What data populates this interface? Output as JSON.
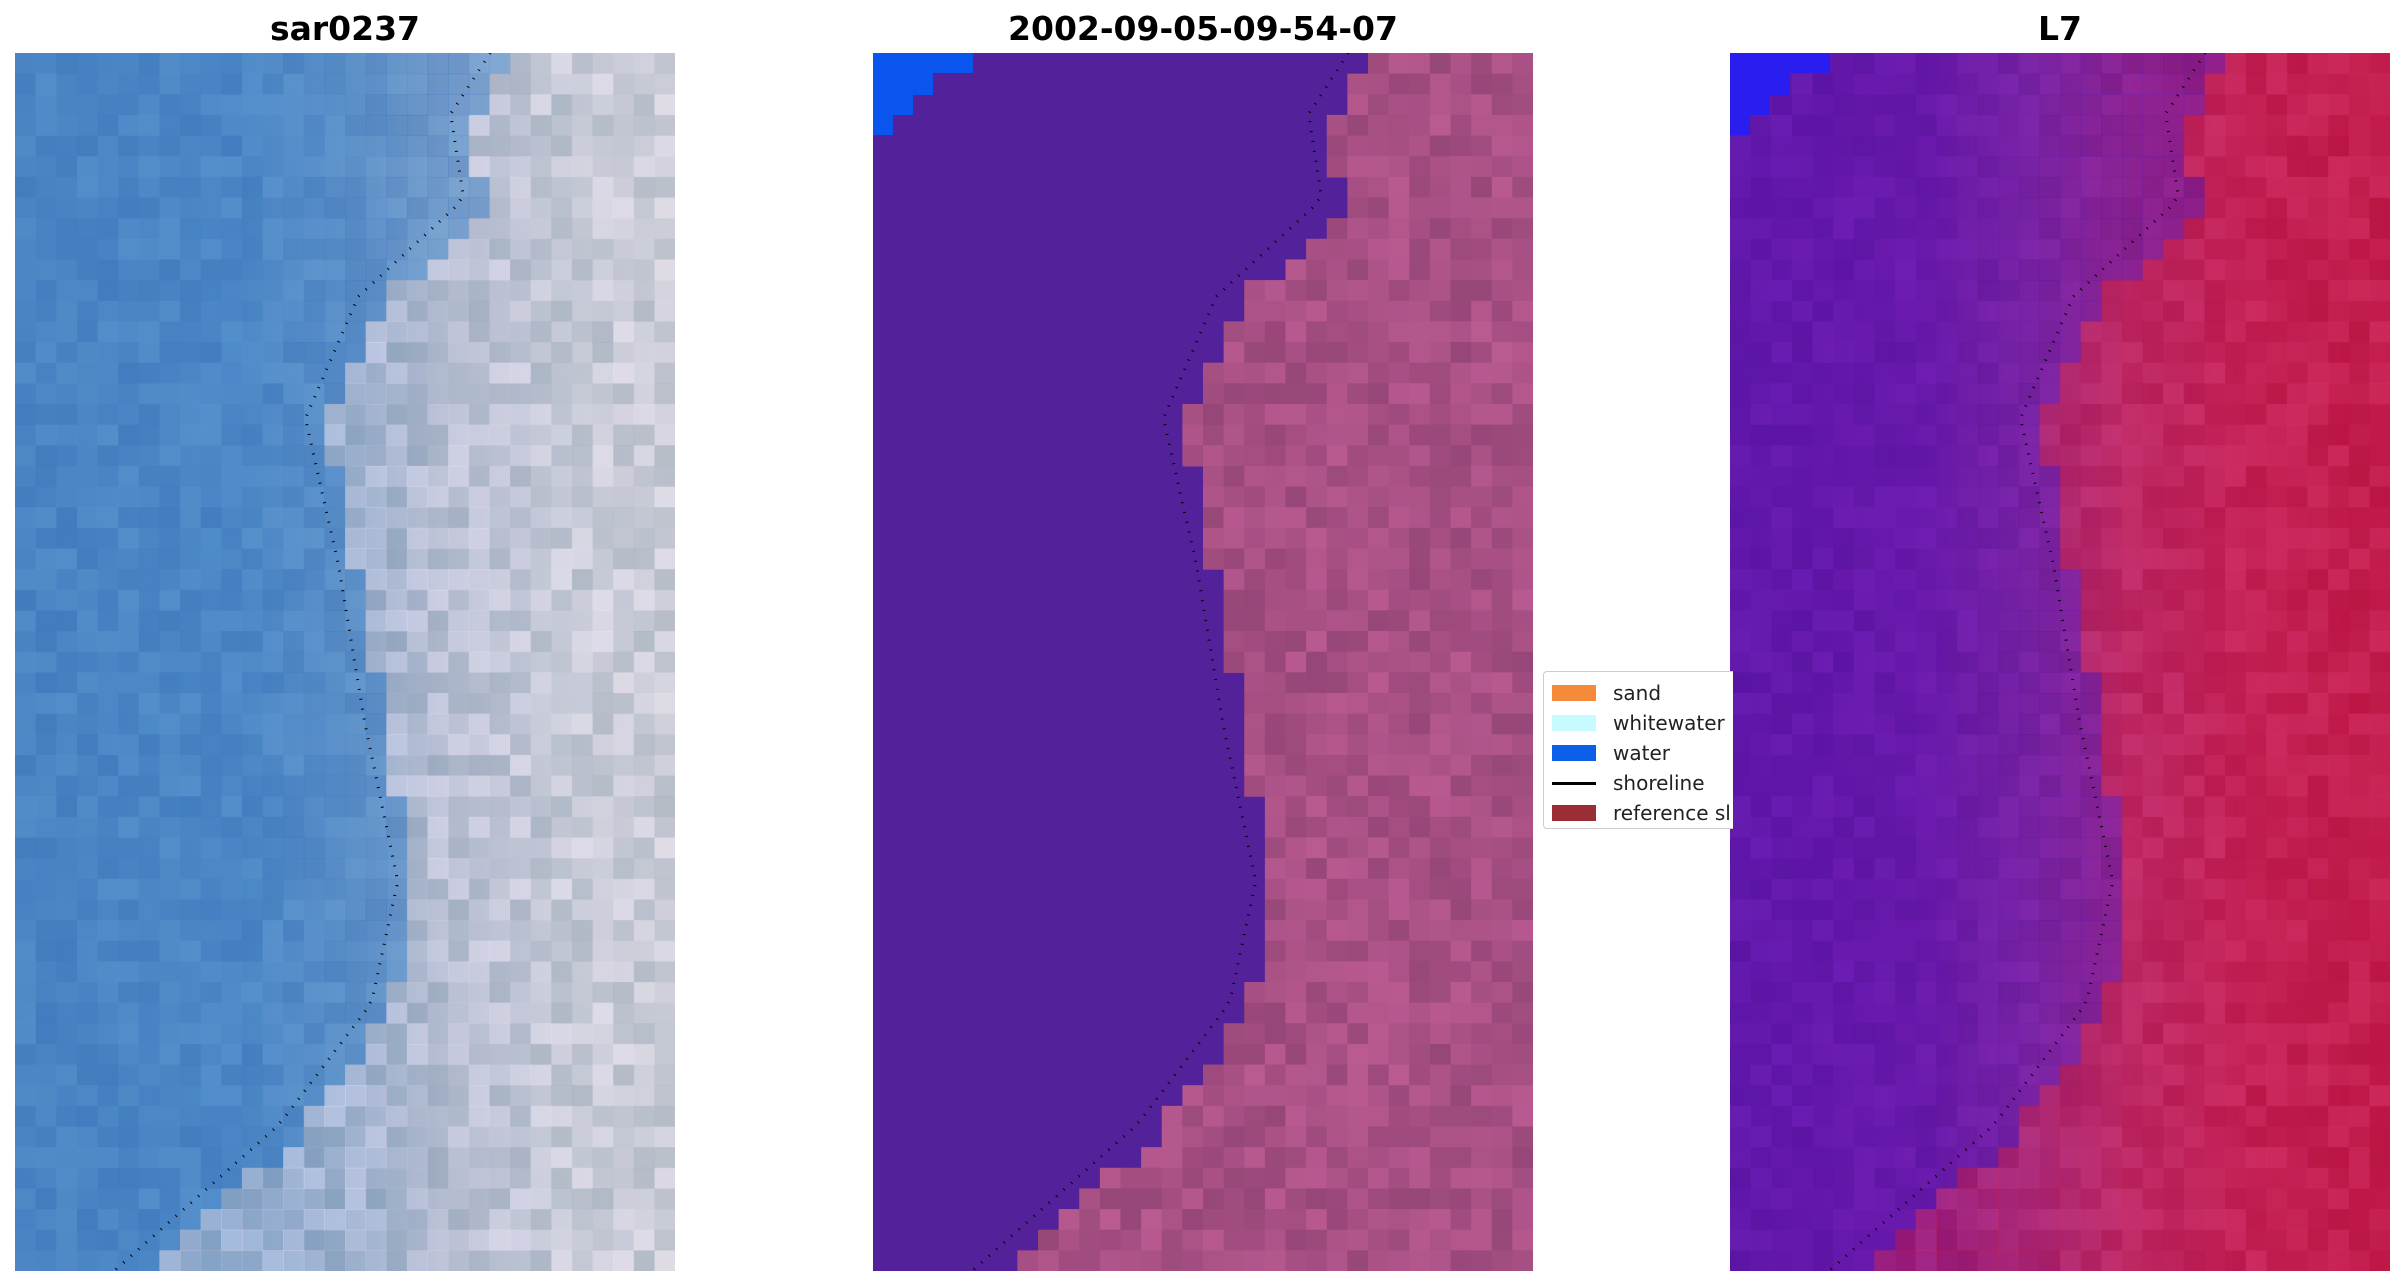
{
  "panels": [
    {
      "title": "sar0237"
    },
    {
      "title": "2002-09-05-09-54-07"
    },
    {
      "title": "L7"
    }
  ],
  "legend": {
    "items": [
      {
        "label": "sand",
        "color": "#f58a3a",
        "kind": "patch"
      },
      {
        "label": "whitewater",
        "color": "#c8fbff",
        "kind": "patch"
      },
      {
        "label": "water",
        "color": "#0b5ee8",
        "kind": "patch"
      },
      {
        "label": "shoreline",
        "color": "#000000",
        "kind": "line"
      },
      {
        "label": "reference sl",
        "color": "#9a2e33",
        "kind": "patch"
      }
    ]
  },
  "colors": {
    "rgb_water": "#4f86c0",
    "rgb_land": "#b9c4d0",
    "classified_water": "#53229a",
    "classified_land": "#a84f86",
    "classified_deep_water": "#0a55ee",
    "mndwi_water": "#6a1aa5",
    "mndwi_land": "#c81a48",
    "mndwi_deep_water": "#2a1df0"
  }
}
